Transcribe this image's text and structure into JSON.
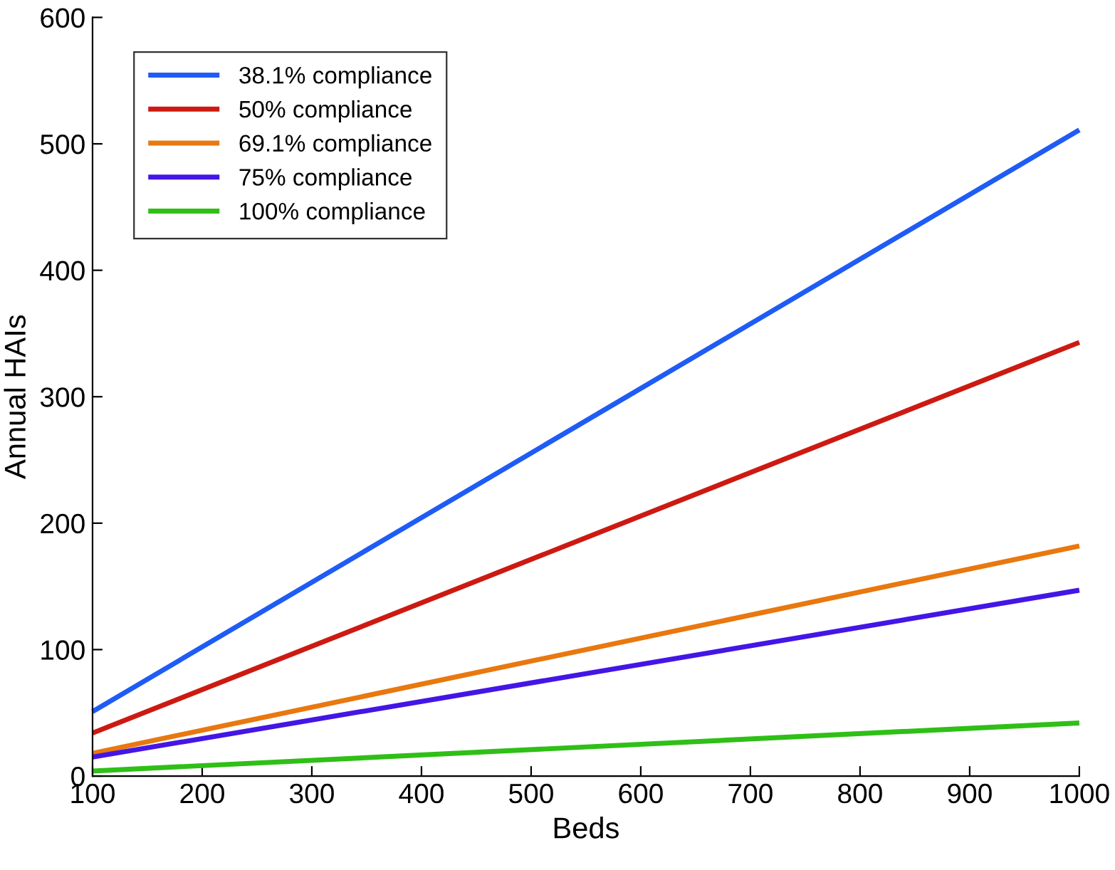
{
  "chart_data": {
    "type": "line",
    "xlabel": "Beds",
    "ylabel": "Annual HAIs",
    "x": [
      100,
      1000
    ],
    "series": [
      {
        "name": "38.1% compliance",
        "color": "#1f5cf5",
        "values": [
          51,
          511
        ]
      },
      {
        "name": "50% compliance",
        "color": "#cc1a12",
        "values": [
          34,
          343
        ]
      },
      {
        "name": "69.1% compliance",
        "color": "#e8780f",
        "values": [
          18,
          182
        ]
      },
      {
        "name": "75% compliance",
        "color": "#4416e6",
        "values": [
          15,
          147
        ]
      },
      {
        "name": "100% compliance",
        "color": "#2fbf17",
        "values": [
          4,
          42
        ]
      }
    ],
    "xlim": [
      100,
      1000
    ],
    "xticks": [
      100,
      200,
      300,
      400,
      500,
      600,
      700,
      800,
      900,
      1000
    ],
    "ylim": [
      0,
      600
    ],
    "yticks": [
      0,
      100,
      200,
      300,
      400,
      500,
      600
    ],
    "legend": "top left",
    "grid": false,
    "marker": "none",
    "line_style": "solid"
  }
}
